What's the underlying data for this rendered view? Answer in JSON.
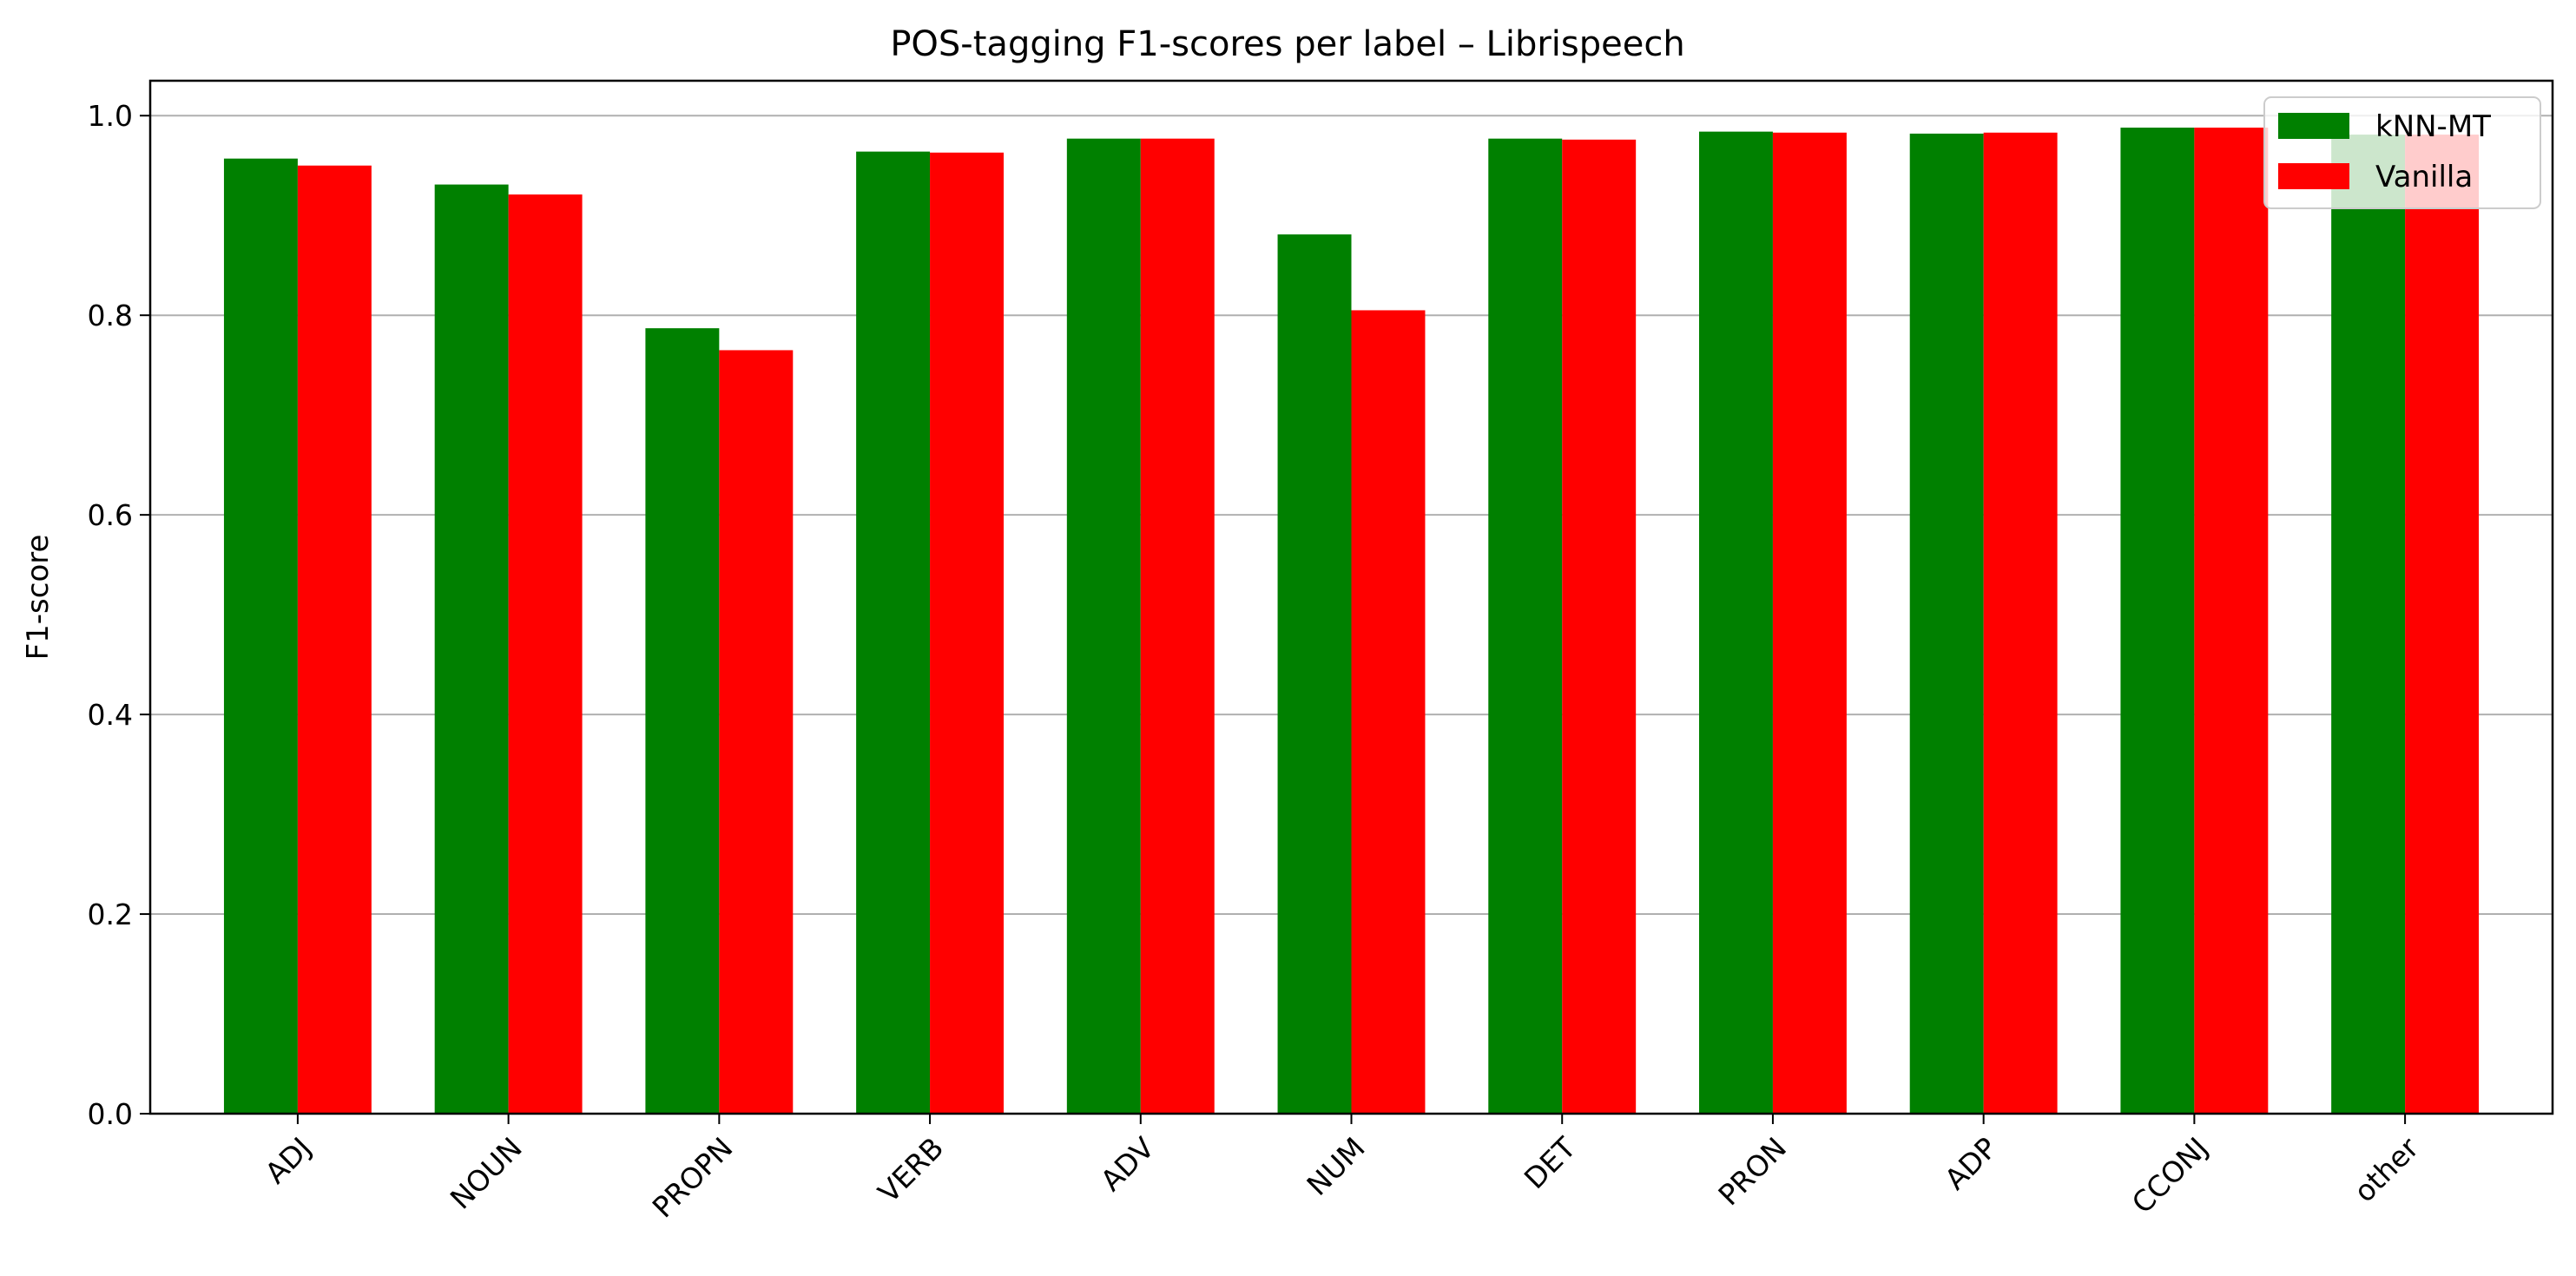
{
  "chart_data": {
    "type": "bar",
    "title": "POS-tagging F1-scores per label – Librispeech",
    "xlabel": "",
    "ylabel": "F1-score",
    "ylim": [
      0,
      1.035
    ],
    "yticks": [
      "0.0",
      "0.2",
      "0.4",
      "0.6",
      "0.8",
      "1.0"
    ],
    "grid": "y",
    "legend_position": "top-right",
    "categories": [
      "ADJ",
      "NOUN",
      "PROPN",
      "VERB",
      "ADV",
      "NUM",
      "DET",
      "PRON",
      "ADP",
      "CCONJ",
      "other"
    ],
    "series": [
      {
        "name": "kNN-MT",
        "color": "#008000",
        "values": [
          0.957,
          0.931,
          0.787,
          0.964,
          0.977,
          0.881,
          0.977,
          0.984,
          0.982,
          0.988,
          0.981
        ]
      },
      {
        "name": "Vanilla",
        "color": "#ff0000",
        "values": [
          0.95,
          0.921,
          0.765,
          0.963,
          0.977,
          0.805,
          0.976,
          0.983,
          0.983,
          0.988,
          0.981
        ]
      }
    ]
  }
}
